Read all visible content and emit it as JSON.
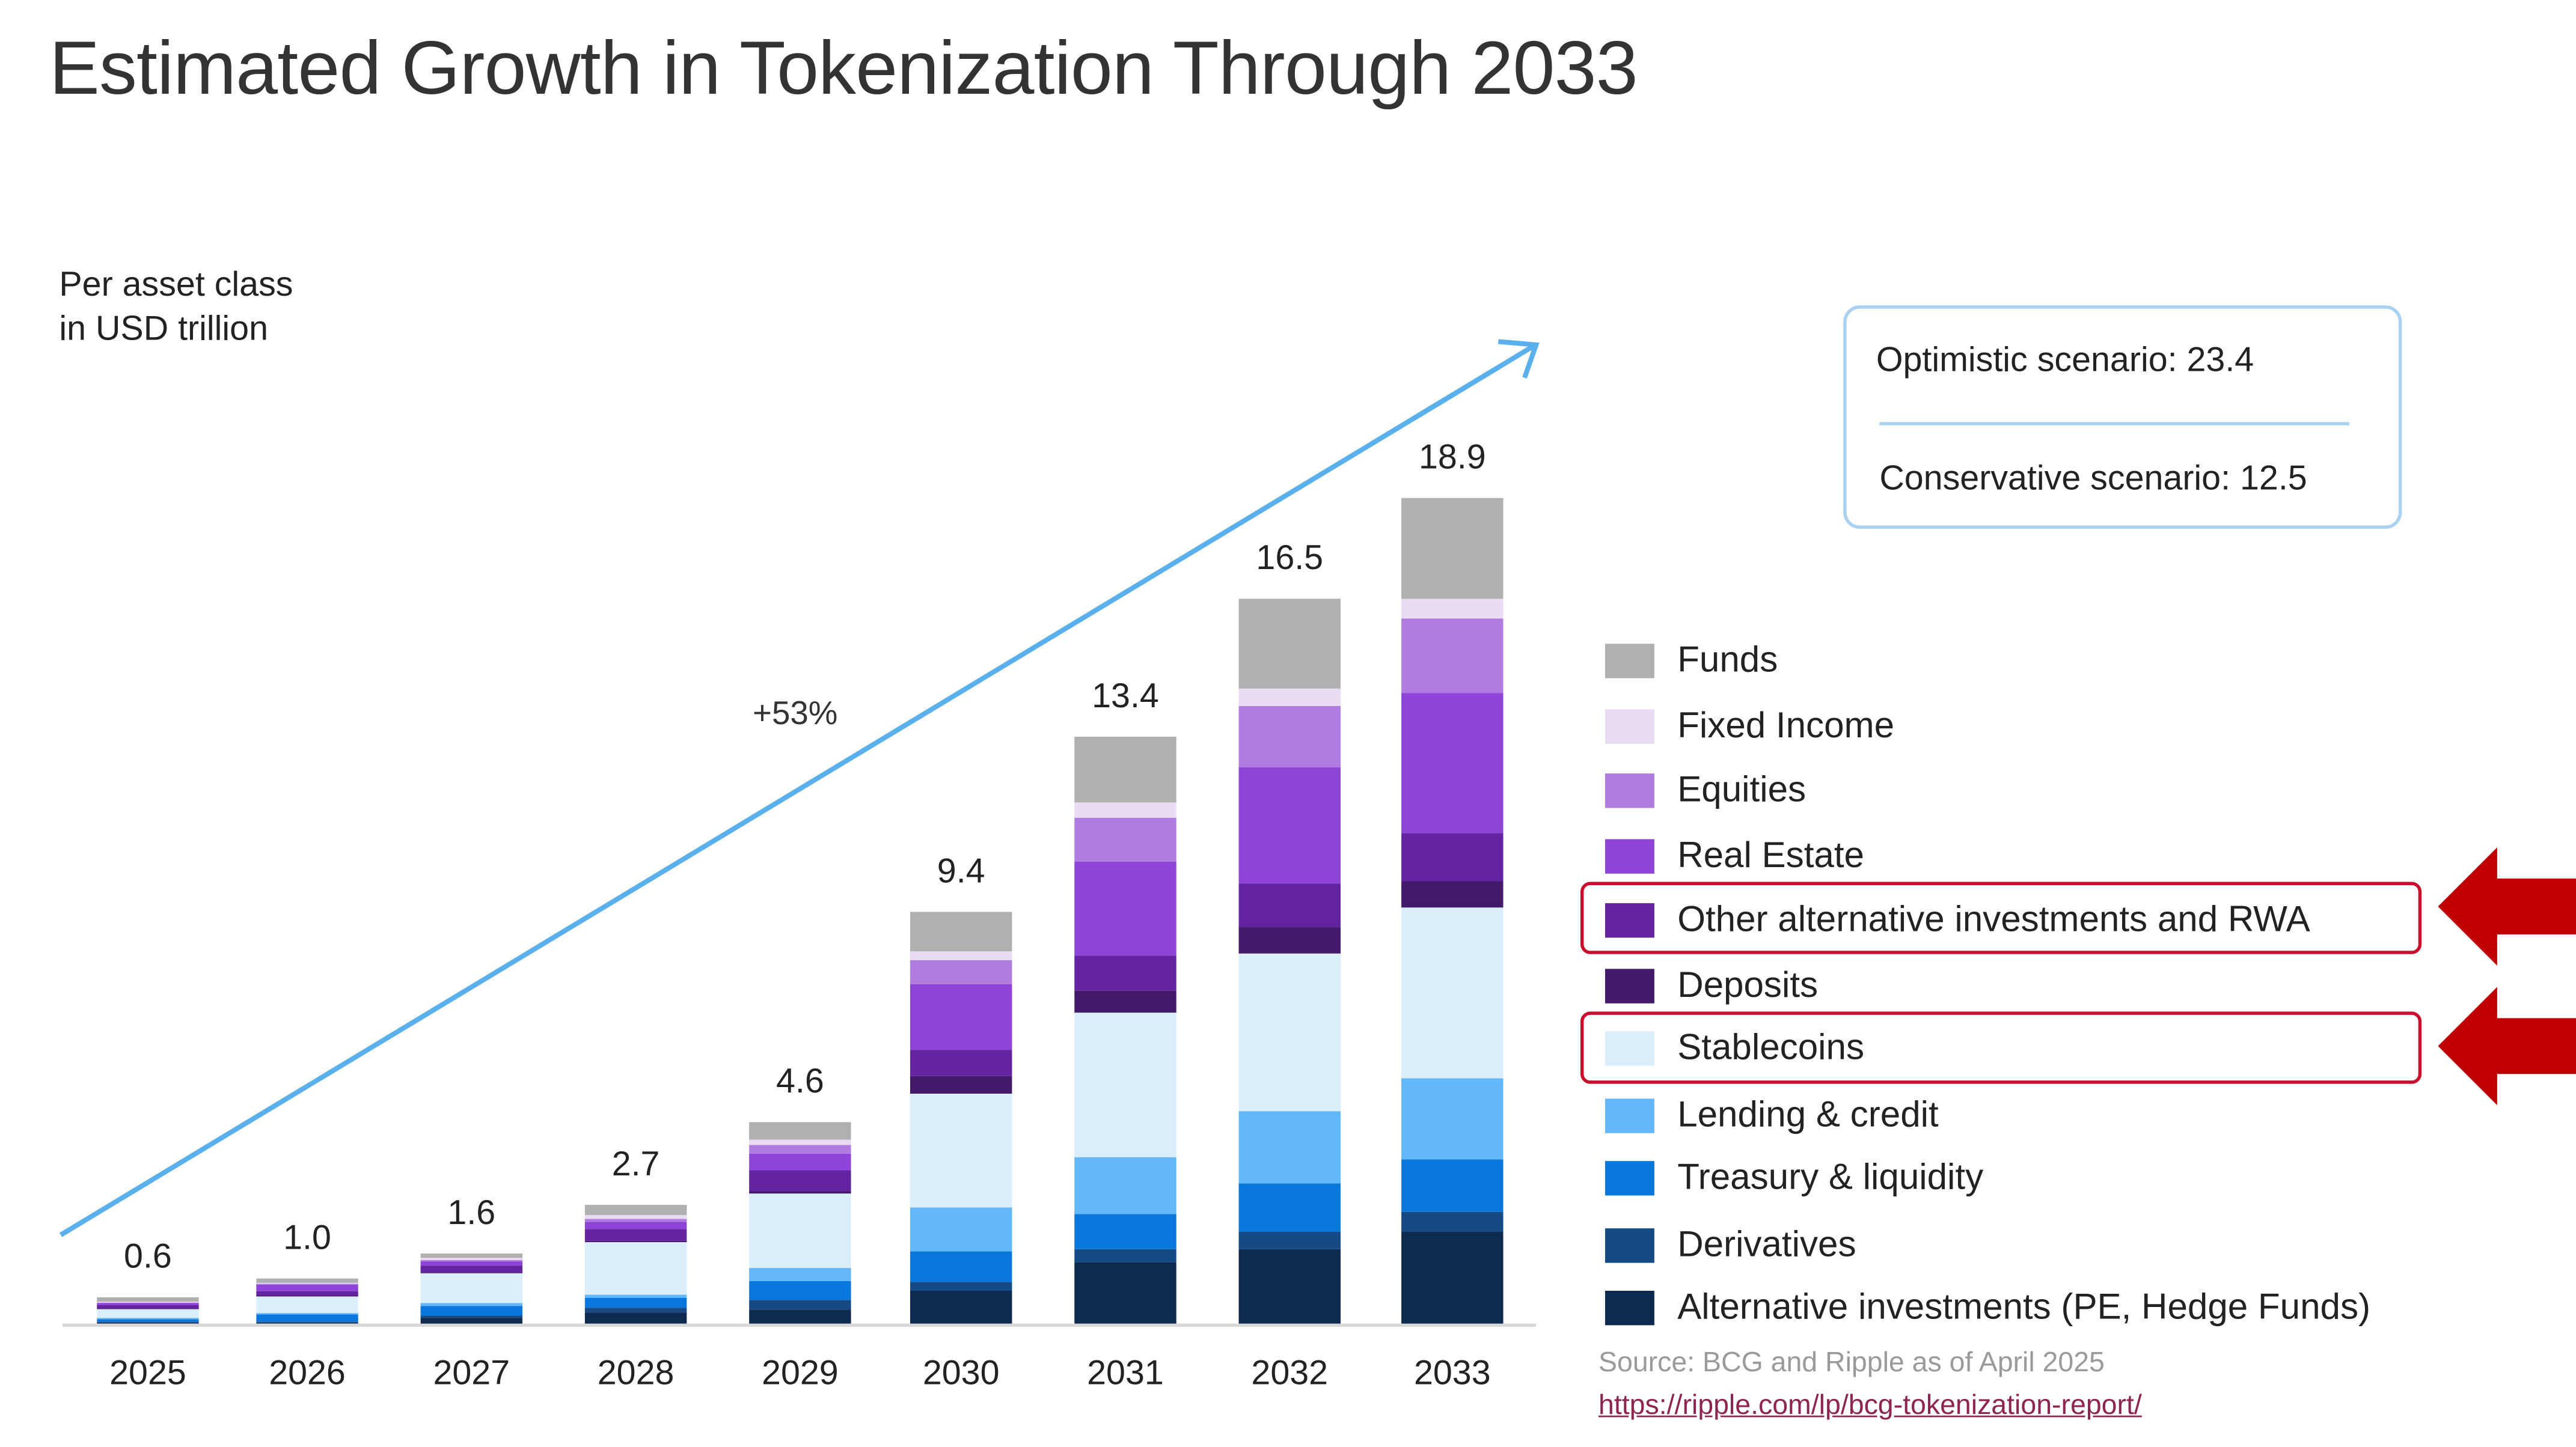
{
  "title": "Estimated Growth in Tokenization Through 2033",
  "unit_label": [
    "Per asset class",
    "in USD trillion"
  ],
  "scenarios": {
    "optimistic": "Optimistic scenario: 23.4",
    "conservative": "Conservative scenario: 12.5"
  },
  "growth_label": "+53%",
  "source": "Source: BCG and Ripple as of April 2025",
  "link": "https://ripple.com/lp/bcg-tokenization-report/",
  "highlighted_legend": [
    "Other alternative investments and RWA",
    "Stablecoins"
  ],
  "highlight_color": "#c00000",
  "chart_data": {
    "type": "bar",
    "stacked": true,
    "categories": [
      "2025",
      "2026",
      "2027",
      "2028",
      "2029",
      "2030",
      "2031",
      "2032",
      "2033"
    ],
    "totals": [
      "0.6",
      "1.0",
      "1.6",
      "2.7",
      "4.6",
      "9.4",
      "13.4",
      "16.5",
      "18.9"
    ],
    "legend_position": "right",
    "grid": false,
    "series": [
      {
        "name": "Alternative investments (PE, Hedge Funds)",
        "color": "#0e2a4e",
        "values": [
          0.02,
          0.02,
          0.13,
          0.25,
          0.32,
          0.75,
          1.4,
          1.7,
          2.1
        ]
      },
      {
        "name": "Derivatives",
        "color": "#164a85",
        "values": [
          0.02,
          0.02,
          0.05,
          0.11,
          0.22,
          0.2,
          0.3,
          0.4,
          0.45
        ]
      },
      {
        "name": "Treasury & liquidity",
        "color": "#0a77dc",
        "values": [
          0.06,
          0.17,
          0.22,
          0.23,
          0.43,
          0.7,
          0.8,
          1.1,
          1.2
        ]
      },
      {
        "name": "Lending & credit",
        "color": "#62b8f8",
        "values": [
          0.03,
          0.03,
          0.07,
          0.07,
          0.3,
          1.0,
          1.3,
          1.65,
          1.85
        ]
      },
      {
        "name": "Stablecoins",
        "color": "#dbeefc",
        "values": [
          0.2,
          0.38,
          0.68,
          1.2,
          1.7,
          2.6,
          3.3,
          3.6,
          3.9
        ]
      },
      {
        "name": "Deposits",
        "color": "#431a6a",
        "values": [
          0.02,
          0.02,
          0.02,
          0.03,
          0.05,
          0.4,
          0.5,
          0.6,
          0.6
        ]
      },
      {
        "name": "Other alternative investments and RWA",
        "color": "#6423a0",
        "values": [
          0.07,
          0.1,
          0.15,
          0.27,
          0.48,
          0.6,
          0.8,
          1.0,
          1.1
        ]
      },
      {
        "name": "Real Estate",
        "color": "#8e44d6",
        "values": [
          0.05,
          0.15,
          0.1,
          0.16,
          0.38,
          1.5,
          2.15,
          2.65,
          3.2
        ]
      },
      {
        "name": "Equities",
        "color": "#b07ce0",
        "values": [
          0.01,
          0.02,
          0.03,
          0.07,
          0.2,
          0.55,
          1.0,
          1.4,
          1.7
        ]
      },
      {
        "name": "Fixed Income",
        "color": "#e8dcf5",
        "values": [
          0.02,
          0.02,
          0.05,
          0.09,
          0.12,
          0.2,
          0.35,
          0.4,
          0.45
        ]
      },
      {
        "name": "Funds",
        "color": "#b0b0b0",
        "values": [
          0.1,
          0.1,
          0.1,
          0.23,
          0.4,
          0.9,
          1.5,
          2.05,
          2.3
        ]
      }
    ],
    "trend_arrow_color": "#5ab0ec"
  }
}
